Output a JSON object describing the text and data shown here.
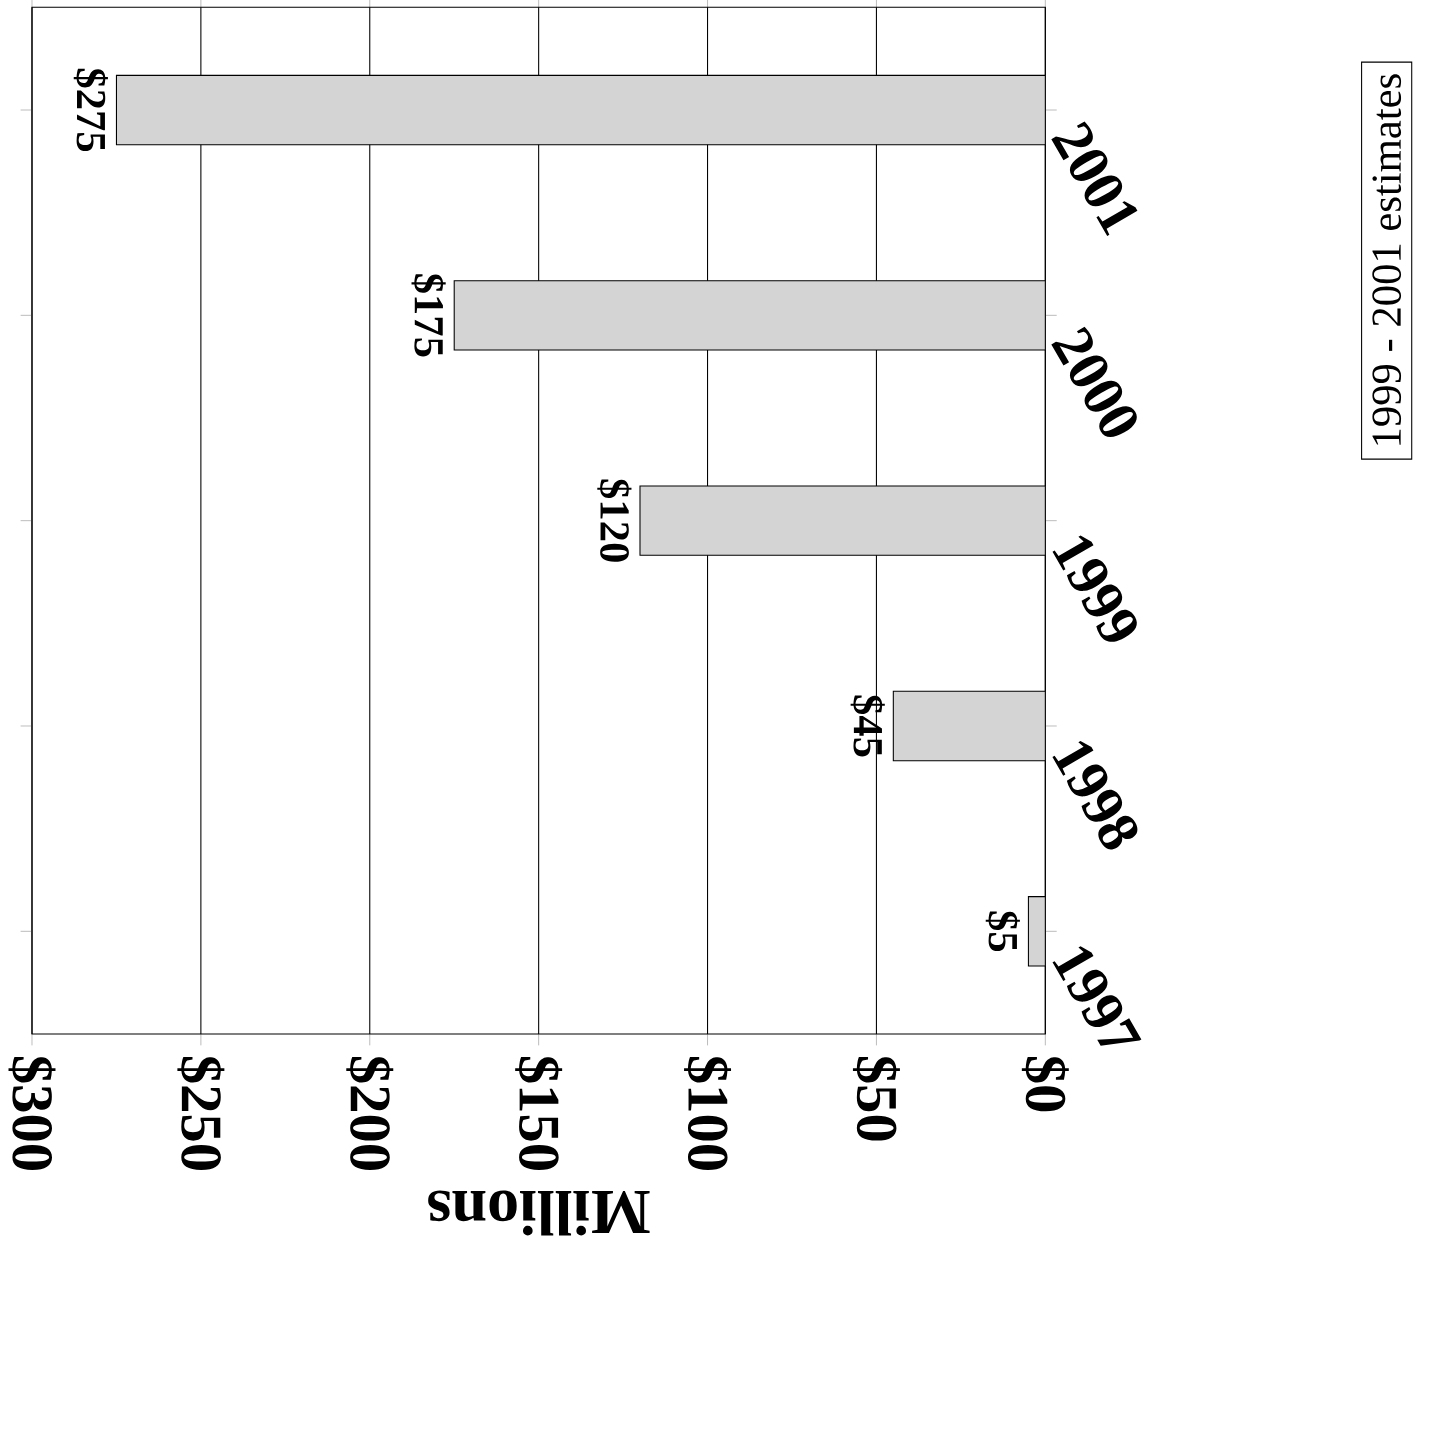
{
  "chart_data": {
    "type": "bar",
    "orientation": "horizontal",
    "xlabel": "Millions",
    "categories": [
      "2001",
      "2000",
      "1999",
      "1998",
      "1997"
    ],
    "values": [
      275,
      175,
      120,
      45,
      5
    ],
    "value_labels": [
      "$275",
      "$175",
      "$120",
      "$45",
      "$5"
    ],
    "color": "#d4d4d4",
    "xlim": [
      300,
      0
    ],
    "xticks": [
      {
        "value": 300,
        "label": "$300"
      },
      {
        "value": 250,
        "label": "$250"
      },
      {
        "value": 200,
        "label": "$200"
      },
      {
        "value": 150,
        "label": "$150"
      },
      {
        "value": 100,
        "label": "$100"
      },
      {
        "value": 50,
        "label": "$50"
      },
      {
        "value": 0,
        "label": "$0"
      }
    ],
    "grid": "x",
    "annotations": [
      "1999 - 2001 estimates"
    ]
  }
}
